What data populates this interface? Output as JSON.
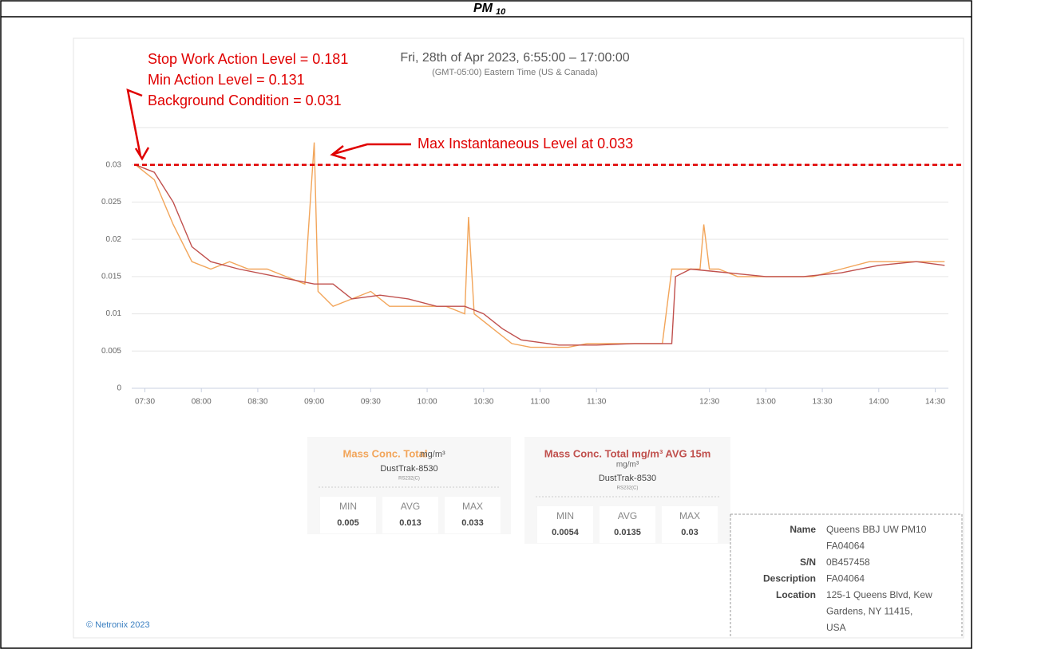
{
  "report_title": {
    "main": "PM",
    "sub": "10"
  },
  "chart_data": {
    "type": "line",
    "title": "Fri, 28th of Apr 2023, 6:55:00 – 17:00:00",
    "subtitle": "(GMT-05:00) Eastern Time (US & Canada)",
    "xlim": [
      "07:23",
      "14:37"
    ],
    "xticks": [
      "07:30",
      "08:00",
      "08:30",
      "09:00",
      "09:30",
      "10:00",
      "10:30",
      "11:00",
      "11:30",
      "12:30",
      "13:00",
      "13:30",
      "14:00",
      "14:30"
    ],
    "ylim": [
      0,
      0.035
    ],
    "yticks": [
      0,
      0.005,
      0.01,
      0.015,
      0.02,
      0.025,
      0.03
    ],
    "grid": true,
    "reference_line": 0.03,
    "annotations": [
      "Stop Work Action Level = 0.181",
      "Min Action Level  = 0.131",
      "Background Condition = 0.031",
      "Max Instantaneous Level at 0.033"
    ],
    "series": [
      {
        "name": "Mass Conc. Total",
        "color": "#f2a55a",
        "x": [
          "07:25",
          "07:35",
          "07:45",
          "07:55",
          "08:05",
          "08:15",
          "08:25",
          "08:35",
          "08:45",
          "08:55",
          "09:00",
          "09:02",
          "09:10",
          "09:20",
          "09:30",
          "09:40",
          "09:50",
          "10:00",
          "10:10",
          "10:20",
          "10:22",
          "10:25",
          "10:35",
          "10:45",
          "10:55",
          "11:05",
          "11:15",
          "11:25",
          "11:35",
          "11:45",
          "11:55",
          "12:05",
          "12:10",
          "12:15",
          "12:25",
          "12:27",
          "12:30",
          "12:35",
          "12:45",
          "12:55",
          "13:10",
          "13:25",
          "13:40",
          "13:55",
          "14:05",
          "14:15",
          "14:25",
          "14:35"
        ],
        "values": [
          0.03,
          0.028,
          0.022,
          0.017,
          0.016,
          0.017,
          0.016,
          0.016,
          0.015,
          0.014,
          0.033,
          0.013,
          0.011,
          0.012,
          0.013,
          0.011,
          0.011,
          0.011,
          0.011,
          0.01,
          0.023,
          0.01,
          0.008,
          0.006,
          0.0055,
          0.0055,
          0.0055,
          0.006,
          0.006,
          0.006,
          0.006,
          0.006,
          0.016,
          0.016,
          0.016,
          0.022,
          0.016,
          0.016,
          0.015,
          0.015,
          0.015,
          0.015,
          0.016,
          0.017,
          0.017,
          0.017,
          0.017,
          0.017
        ]
      },
      {
        "name": "Mass Conc. Total mg/m³ AVG 15m",
        "color": "#c0504d",
        "x": [
          "07:25",
          "07:35",
          "07:45",
          "07:55",
          "08:05",
          "08:20",
          "08:40",
          "09:00",
          "09:10",
          "09:20",
          "09:35",
          "09:50",
          "10:05",
          "10:20",
          "10:30",
          "10:40",
          "10:50",
          "11:10",
          "11:30",
          "11:50",
          "12:10",
          "12:12",
          "12:20",
          "12:40",
          "13:00",
          "13:20",
          "13:40",
          "14:00",
          "14:20",
          "14:35"
        ],
        "values": [
          0.03,
          0.029,
          0.025,
          0.019,
          0.017,
          0.016,
          0.015,
          0.014,
          0.014,
          0.012,
          0.0125,
          0.012,
          0.011,
          0.011,
          0.01,
          0.008,
          0.0065,
          0.0058,
          0.0058,
          0.006,
          0.006,
          0.015,
          0.016,
          0.0155,
          0.015,
          0.015,
          0.0155,
          0.0165,
          0.017,
          0.0165
        ]
      }
    ]
  },
  "cards": [
    {
      "unit": "mg/m³",
      "device": "DustTrak-8530",
      "port": "RS232(C)",
      "labels": [
        "MIN",
        "AVG",
        "MAX"
      ],
      "values": [
        0.005,
        0.013,
        0.033
      ]
    },
    {
      "unit": "mg/m³",
      "device": "DustTrak-8530",
      "port": "RS232(C)",
      "labels": [
        "MIN",
        "AVG",
        "MAX"
      ],
      "values": [
        0.0054,
        0.0135,
        0.03
      ]
    }
  ],
  "info": [
    {
      "label": "Name",
      "lines": [
        "Queens BBJ UW PM10",
        "FA04064"
      ]
    },
    {
      "label": "S/N",
      "lines": [
        "0B457458"
      ]
    },
    {
      "label": "Description",
      "lines": [
        "FA04064"
      ]
    },
    {
      "label": "Location",
      "lines": [
        "125-1 Queens Blvd, Kew",
        "Gardens, NY 11415,",
        "USA"
      ]
    }
  ],
  "footer": "© Netronix 2023"
}
